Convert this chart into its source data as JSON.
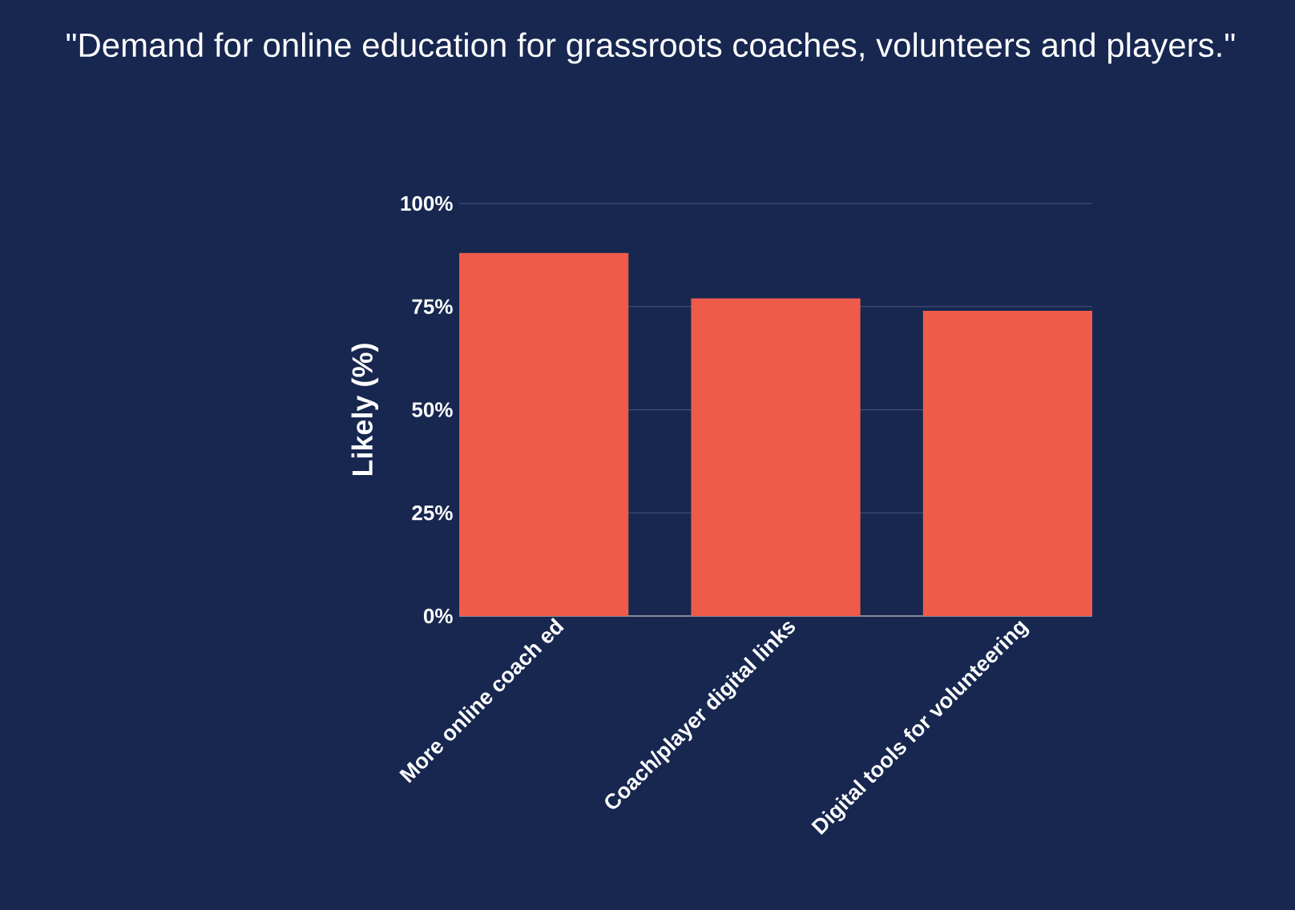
{
  "chart_data": {
    "type": "bar",
    "title": "\"Demand for online education for grassroots coaches, volunteers and players.\"",
    "ylabel": "Likely (%)",
    "categories": [
      "More online coach ed",
      "Coach/player digital links",
      "Digital tools for volunteering"
    ],
    "values": [
      88,
      77,
      74
    ],
    "color": "#ee5b4b",
    "ylim": [
      0,
      100
    ],
    "yticks": [
      {
        "value": 0,
        "label": "0%"
      },
      {
        "value": 25,
        "label": "25%"
      },
      {
        "value": 50,
        "label": "50%"
      },
      {
        "value": 75,
        "label": "75%"
      },
      {
        "value": 100,
        "label": "100%"
      }
    ],
    "grid": "y"
  }
}
